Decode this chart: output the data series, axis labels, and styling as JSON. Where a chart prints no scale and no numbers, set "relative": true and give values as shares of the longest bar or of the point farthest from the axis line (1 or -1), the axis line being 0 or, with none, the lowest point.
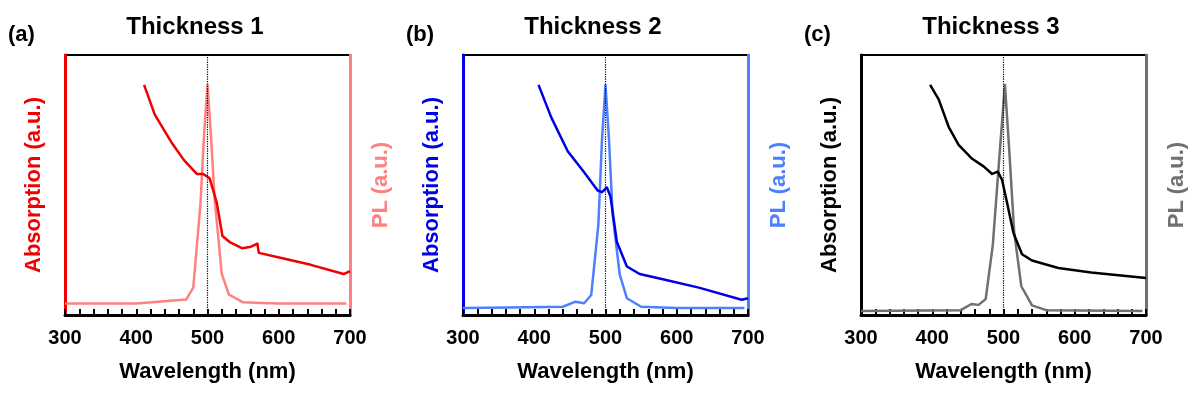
{
  "chart_data": [
    {
      "type": "line",
      "title": "Thickness 1",
      "annotations": [
        "(a)"
      ],
      "xlabel": "Wavelength (nm)",
      "ylabel": "Absorption (a.u.)",
      "y2label": "PL (a.u.)",
      "relative": true,
      "grid": false,
      "xlim": [
        300,
        700
      ],
      "xticks": [
        300,
        {
          "value": 320,
          "label": null
        },
        {
          "value": 340,
          "label": null
        },
        {
          "value": 360,
          "label": null
        },
        {
          "value": 380,
          "label": null
        },
        400,
        {
          "value": 420,
          "label": null
        },
        {
          "value": 440,
          "label": null
        },
        {
          "value": 460,
          "label": null
        },
        {
          "value": 480,
          "label": null
        },
        500,
        {
          "value": 520,
          "label": null
        },
        {
          "value": 540,
          "label": null
        },
        {
          "value": 560,
          "label": null
        },
        {
          "value": 580,
          "label": null
        },
        600,
        {
          "value": 620,
          "label": null
        },
        {
          "value": 640,
          "label": null
        },
        {
          "value": 660,
          "label": null
        },
        {
          "value": 680,
          "label": null
        },
        700
      ],
      "ref_lines": [
        {
          "axis": "x",
          "value": 500,
          "color": "#000000",
          "line_style": "dotted"
        }
      ],
      "series": [
        {
          "color": "#f00000",
          "x": [
            411,
            426,
            449,
            467,
            485,
            494,
            503,
            513,
            521,
            531,
            549,
            561,
            570,
            572,
            599,
            645,
            691,
            700
          ],
          "values": [
            1,
            0.871,
            0.752,
            0.673,
            0.613,
            0.613,
            0.594,
            0.488,
            0.343,
            0.317,
            0.29,
            0.297,
            0.31,
            0.27,
            0.251,
            0.218,
            0.178,
            0.191
          ]
        },
        {
          "axis": "y2",
          "color": "#ff8080",
          "x": [
            300,
            400,
            470,
            480,
            490,
            495,
            500,
            505,
            510,
            520,
            530,
            550,
            600,
            695
          ],
          "values": [
            0.05,
            0.05,
            0.067,
            0.119,
            0.476,
            0.774,
            1,
            0.774,
            0.506,
            0.179,
            0.089,
            0.055,
            0.05,
            0.05
          ]
        }
      ]
    },
    {
      "type": "line",
      "title": "Thickness 2",
      "annotations": [
        "(b)"
      ],
      "xlabel": "Wavelength (nm)",
      "ylabel": "Absorption (a.u.)",
      "y2label": "PL (a.u.)",
      "relative": true,
      "grid": false,
      "xlim": [
        300,
        700
      ],
      "xticks": [
        300,
        {
          "value": 320,
          "label": null
        },
        {
          "value": 340,
          "label": null
        },
        {
          "value": 360,
          "label": null
        },
        {
          "value": 380,
          "label": null
        },
        400,
        {
          "value": 420,
          "label": null
        },
        {
          "value": 440,
          "label": null
        },
        {
          "value": 460,
          "label": null
        },
        {
          "value": 480,
          "label": null
        },
        500,
        {
          "value": 520,
          "label": null
        },
        {
          "value": 540,
          "label": null
        },
        {
          "value": 560,
          "label": null
        },
        {
          "value": 580,
          "label": null
        },
        600,
        {
          "value": 620,
          "label": null
        },
        {
          "value": 640,
          "label": null
        },
        {
          "value": 660,
          "label": null
        },
        {
          "value": 680,
          "label": null
        },
        700
      ],
      "ref_lines": [
        {
          "axis": "x",
          "value": 500,
          "color": "#000000",
          "line_style": "dotted"
        }
      ],
      "series": [
        {
          "color": "#0000e6",
          "x": [
            406,
            424,
            447,
            470,
            489,
            495,
            502,
            507,
            516,
            530,
            548,
            585,
            631,
            691,
            700
          ],
          "values": [
            1,
            0.858,
            0.712,
            0.62,
            0.541,
            0.534,
            0.554,
            0.515,
            0.317,
            0.211,
            0.178,
            0.152,
            0.119,
            0.066,
            0.073
          ]
        },
        {
          "axis": "y2",
          "color": "#4d80ff",
          "x": [
            300,
            440,
            458,
            470,
            480,
            490,
            495,
            500,
            505,
            510,
            520,
            530,
            550,
            600,
            695
          ],
          "values": [
            0.03,
            0.036,
            0.058,
            0.051,
            0.087,
            0.393,
            0.757,
            1,
            0.757,
            0.437,
            0.175,
            0.073,
            0.036,
            0.03,
            0.03
          ]
        }
      ]
    },
    {
      "type": "line",
      "title": "Thickness 3",
      "annotations": [
        "(c)"
      ],
      "xlabel": "Wavelength (nm)",
      "ylabel": "Absorption (a.u.)",
      "y2label": "PL (a.u.)",
      "relative": true,
      "grid": false,
      "xlim": [
        300,
        700
      ],
      "xticks": [
        300,
        {
          "value": 320,
          "label": null
        },
        {
          "value": 340,
          "label": null
        },
        {
          "value": 360,
          "label": null
        },
        {
          "value": 380,
          "label": null
        },
        400,
        {
          "value": 420,
          "label": null
        },
        {
          "value": 440,
          "label": null
        },
        {
          "value": 460,
          "label": null
        },
        {
          "value": 480,
          "label": null
        },
        500,
        {
          "value": 520,
          "label": null
        },
        {
          "value": 540,
          "label": null
        },
        {
          "value": 560,
          "label": null
        },
        {
          "value": 580,
          "label": null
        },
        600,
        {
          "value": 620,
          "label": null
        },
        {
          "value": 640,
          "label": null
        },
        {
          "value": 660,
          "label": null
        },
        {
          "value": 680,
          "label": null
        },
        700
      ],
      "ref_lines": [
        {
          "axis": "x",
          "value": 500,
          "color": "#000000",
          "line_style": "dotted"
        }
      ],
      "series": [
        {
          "color": "#000000",
          "x": [
            397,
            409,
            423,
            437,
            456,
            472,
            484,
            492,
            498,
            505,
            514,
            526,
            540,
            577,
            623,
            700
          ],
          "values": [
            1,
            0.937,
            0.818,
            0.739,
            0.679,
            0.646,
            0.613,
            0.623,
            0.587,
            0.488,
            0.356,
            0.264,
            0.237,
            0.204,
            0.185,
            0.161
          ]
        },
        {
          "axis": "y2",
          "color": "#707070",
          "x": [
            300,
            440,
            455,
            465,
            475,
            485,
            495,
            502,
            508,
            515,
            525,
            540,
            560,
            695
          ],
          "values": [
            0.017,
            0.021,
            0.048,
            0.044,
            0.069,
            0.305,
            0.72,
            1,
            0.72,
            0.36,
            0.125,
            0.042,
            0.021,
            0.017
          ]
        }
      ]
    }
  ]
}
